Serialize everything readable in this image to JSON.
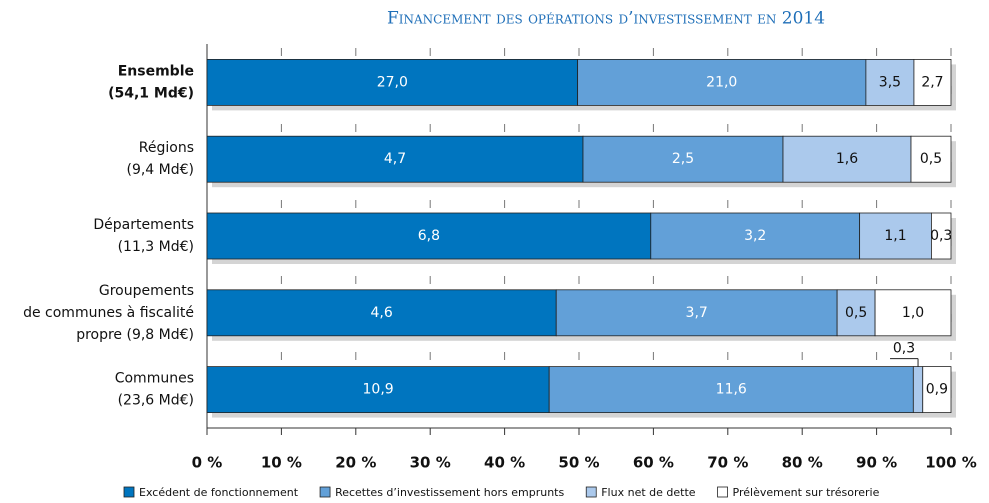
{
  "chart_data": {
    "type": "bar",
    "orientation": "horizontal",
    "stacked": "percent",
    "title": "Financement des opérations d’investissement en 2014",
    "categories": [
      "Ensemble\n(54,1 Md€)",
      "Régions\n(9,4 Md€)",
      "Départements\n(11,3 Md€)",
      "Groupements\nde communes à fiscalité\npropre (9,8 Md€)",
      "Communes\n(23,6 Md€)"
    ],
    "series": [
      {
        "name": "Excédent de fonctionnement",
        "color": "#0075bf",
        "values": [
          27.0,
          4.7,
          6.8,
          4.6,
          10.9
        ],
        "value_labels": [
          "27,0",
          "4,7",
          "6,8",
          "4,6",
          "10,9"
        ]
      },
      {
        "name": "Recettes d’investissement hors emprunts",
        "color": "#62a0d8",
        "values": [
          21.0,
          2.5,
          3.2,
          3.7,
          11.6
        ],
        "value_labels": [
          "21,0",
          "2,5",
          "3,2",
          "3,7",
          "11,6"
        ]
      },
      {
        "name": "Flux net de dette",
        "color": "#abc9ec",
        "values": [
          3.5,
          1.6,
          1.1,
          0.5,
          0.3
        ],
        "value_labels": [
          "3,5",
          "1,6",
          "1,1",
          "0,5",
          "0,3"
        ]
      },
      {
        "name": "Prélèvement sur trésorerie",
        "color": "#ffffff",
        "values": [
          2.7,
          0.5,
          0.3,
          1.0,
          0.9
        ],
        "value_labels": [
          "2,7",
          "0,5",
          "0,3",
          "1,0",
          "0,9"
        ]
      }
    ],
    "xlim": [
      0,
      100
    ],
    "xticks": [
      {
        "value": 0,
        "label": "0 %"
      },
      {
        "value": 10,
        "label": "10 %"
      },
      {
        "value": 20,
        "label": "20 %"
      },
      {
        "value": 30,
        "label": "30 %"
      },
      {
        "value": 40,
        "label": "40 %"
      },
      {
        "value": 50,
        "label": "50 %"
      },
      {
        "value": 60,
        "label": "60 %"
      },
      {
        "value": 70,
        "label": "70 %"
      },
      {
        "value": 80,
        "label": "80 %"
      },
      {
        "value": 90,
        "label": "90 %"
      },
      {
        "value": 100,
        "label": "100 %"
      }
    ],
    "grid": true,
    "legend": "bottom"
  }
}
